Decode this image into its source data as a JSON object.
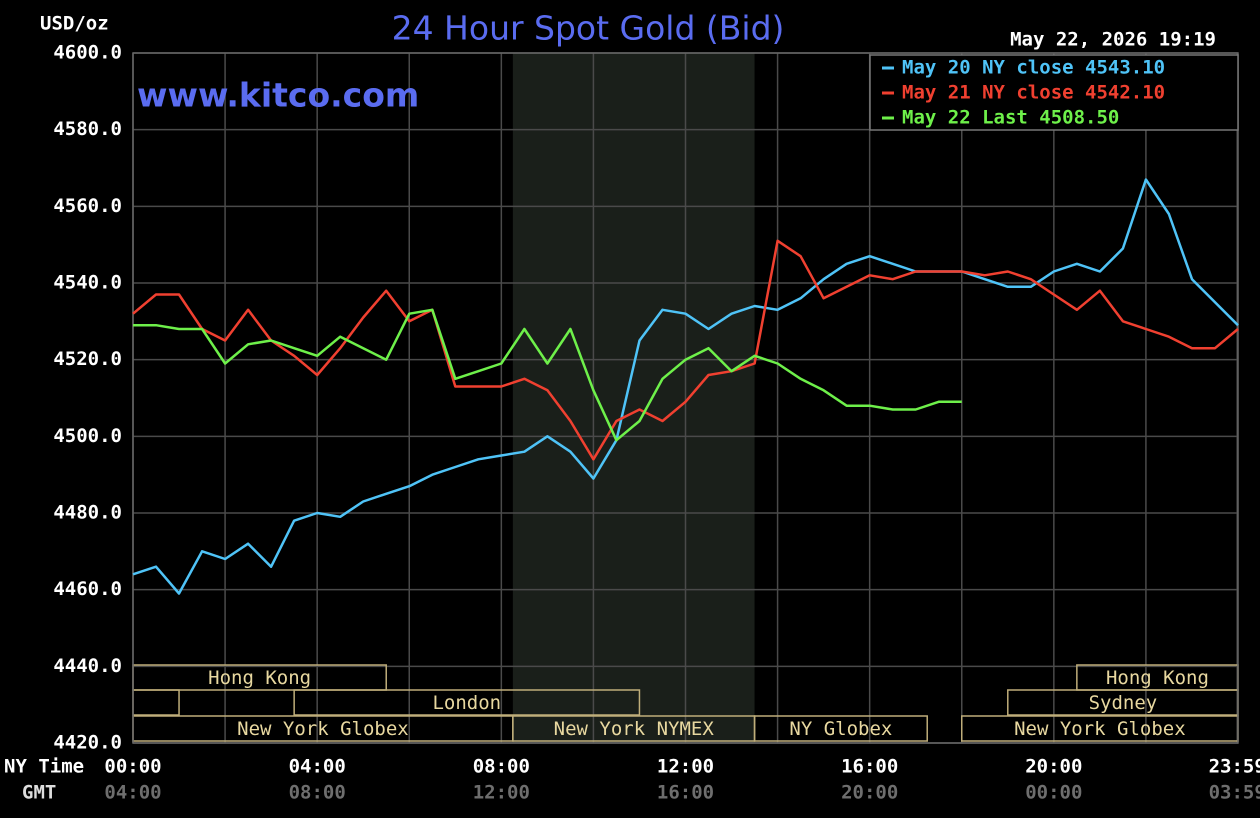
{
  "chart_data": {
    "type": "line",
    "title": "24 Hour Spot Gold (Bid)",
    "watermark": "www.kitco.com",
    "y_axis_label": "USD/oz",
    "timestamp": "May 22, 2026 19:19",
    "x_axis_label": "NY Time",
    "x2_axis_label": "GMT",
    "x": [
      0,
      0.5,
      1,
      1.5,
      2,
      2.5,
      3,
      3.5,
      4,
      4.5,
      5,
      5.5,
      6,
      6.5,
      7,
      7.5,
      8,
      8.5,
      9,
      9.5,
      10,
      10.5,
      11,
      11.5,
      12,
      12.5,
      13,
      13.5,
      14,
      14.5,
      15,
      15.5,
      16,
      16.5,
      17,
      17.5,
      18,
      18.5,
      19,
      19.5,
      20,
      20.5,
      21,
      21.5,
      22,
      22.5,
      23,
      23.5,
      24
    ],
    "series": [
      {
        "name": "May 20 NY close 4543.10",
        "color": "#4fc3f7",
        "values": [
          4464,
          4466,
          4459,
          4470,
          4468,
          4472,
          4466,
          4478,
          4480,
          4479,
          4483,
          4485,
          4487,
          4490,
          4492,
          4494,
          4495,
          4496,
          4500,
          4496,
          4489,
          4499,
          4525,
          4533,
          4532,
          4528,
          4532,
          4534,
          4533,
          4536,
          4541,
          4545,
          4547,
          4545,
          4543,
          4543,
          4543,
          4541,
          4539,
          4539,
          4543,
          4545,
          4543,
          4549,
          4567,
          4558,
          4541,
          4535,
          4529
        ]
      },
      {
        "name": "May 21 NY close 4542.10",
        "color": "#f04030",
        "values": [
          4532,
          4537,
          4537,
          4528,
          4525,
          4533,
          4525,
          4521,
          4516,
          4523,
          4531,
          4538,
          4530,
          4533,
          4513,
          4513,
          4513,
          4515,
          4512,
          4504,
          4494,
          4504,
          4507,
          4504,
          4509,
          4516,
          4517,
          4519,
          4551,
          4547,
          4536,
          4539,
          4542,
          4541,
          4543,
          4543,
          4543,
          4542,
          4543,
          4541,
          4537,
          4533,
          4538,
          4530,
          4528,
          4526,
          4523,
          4523,
          4528
        ]
      },
      {
        "name": "May 22 Last 4508.50",
        "color": "#6ef04a",
        "values": [
          4529,
          4529,
          4528,
          4528,
          4519,
          4524,
          4525,
          4523,
          4521,
          4526,
          4523,
          4520,
          4532,
          4533,
          4515,
          4517,
          4519,
          4528,
          4519,
          4528,
          4512,
          4499,
          4504,
          4515,
          4520,
          4523,
          4517,
          4521,
          4519,
          4515,
          4512,
          4508,
          4508,
          4507,
          4507,
          4509,
          4509,
          null,
          null,
          null,
          null,
          null,
          null,
          null,
          null,
          null,
          null,
          null,
          null
        ]
      }
    ],
    "xlim": [
      0,
      24
    ],
    "xticks": [
      {
        "value": 0,
        "label": "00:00"
      },
      {
        "value": 4,
        "label": "04:00"
      },
      {
        "value": 8,
        "label": "08:00"
      },
      {
        "value": 12,
        "label": "12:00"
      },
      {
        "value": 16,
        "label": "16:00"
      },
      {
        "value": 20,
        "label": "20:00"
      },
      {
        "value": 23.983,
        "label": "23:59"
      }
    ],
    "x_minor_ticks": [
      2,
      6,
      10,
      14,
      18,
      22
    ],
    "gmt_labels": [
      "04:00",
      "08:00",
      "12:00",
      "16:00",
      "20:00",
      "00:00",
      "03:59"
    ],
    "ylim": [
      4420,
      4600
    ],
    "yticks": [
      {
        "value": 4420,
        "label": "4420.0"
      },
      {
        "value": 4440,
        "label": "4440.0"
      },
      {
        "value": 4460,
        "label": "4460.0"
      },
      {
        "value": 4480,
        "label": "4480.0"
      },
      {
        "value": 4500,
        "label": "4500.0"
      },
      {
        "value": 4520,
        "label": "4520.0"
      },
      {
        "value": 4540,
        "label": "4540.0"
      },
      {
        "value": 4560,
        "label": "4560.0"
      },
      {
        "value": 4580,
        "label": "4580.0"
      },
      {
        "value": 4600,
        "label": "4600.0"
      }
    ],
    "grid": true,
    "legend": "top-right",
    "shaded_region": [
      8.25,
      13.5
    ],
    "sessions": [
      {
        "label": "Hong Kong",
        "start": 0,
        "end": 5.5,
        "row": 0
      },
      {
        "label": "Hong Kong",
        "start": 20.5,
        "end": 24,
        "row": 0
      },
      {
        "start": 0,
        "end": 1,
        "row": 1
      },
      {
        "label": "London",
        "start": 3.5,
        "end": 11,
        "row": 1
      },
      {
        "label": "Sydney",
        "start": 19,
        "end": 24,
        "row": 1
      },
      {
        "label": "New York Globex",
        "start": 0,
        "end": 8.25,
        "row": 2
      },
      {
        "label": "New York NYMEX",
        "start": 8.25,
        "end": 13.5,
        "row": 2
      },
      {
        "label": "NY Globex",
        "start": 13.5,
        "end": 17.25,
        "row": 2
      },
      {
        "label": "New York Globex",
        "start": 18,
        "end": 24,
        "row": 2
      }
    ]
  }
}
